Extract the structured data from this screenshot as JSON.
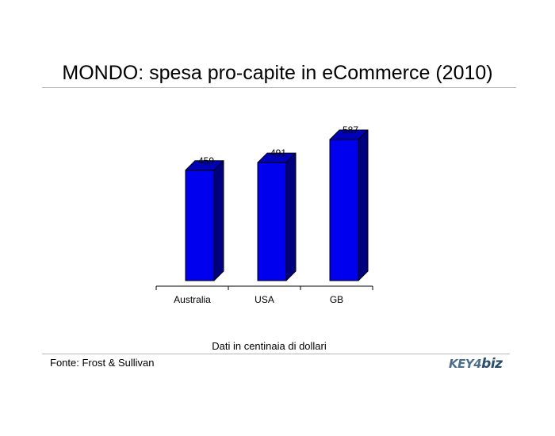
{
  "slide": {
    "title": "MONDO: spesa pro-capite in eCommerce (2010)",
    "note": "Dati in centinaia di dollari",
    "source": "Fonte: Frost & Sullivan",
    "logo": {
      "part1": "KEY",
      "part2": "4",
      "part3": "biz"
    }
  },
  "colors": {
    "bar_front": "#0000ee",
    "bar_side": "#00007e",
    "bar_top": "#0000b8",
    "logo": "#4d6e8c"
  },
  "chart_data": {
    "type": "bar",
    "style": "3d",
    "title": "",
    "xlabel": "",
    "ylabel": "",
    "categories": [
      "Australia",
      "USA",
      "GB"
    ],
    "values": [
      459,
      491,
      587
    ],
    "ylim": [
      0,
      600
    ],
    "grid": false,
    "legend": "none",
    "data_labels": true
  }
}
